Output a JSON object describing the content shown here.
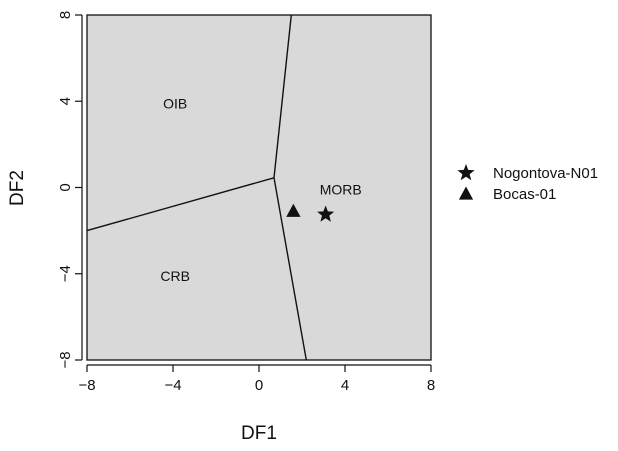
{
  "chart_data": {
    "type": "scatter",
    "title": "",
    "xlabel": "DF1",
    "ylabel": "DF2",
    "xlim": [
      -8,
      8
    ],
    "ylim": [
      -8,
      8
    ],
    "x_ticks": [
      "−8",
      "−4",
      "0",
      "4",
      "8"
    ],
    "y_ticks": [
      "−8",
      "−4",
      "0",
      "4",
      "8"
    ],
    "x_tick_values": [
      -8,
      -4,
      0,
      4,
      8
    ],
    "y_tick_values": [
      -8,
      -4,
      0,
      4,
      8
    ],
    "plot_background": "#d9d9d9",
    "grid": false,
    "boundaries": [
      {
        "points": [
          [
            -8,
            -2.0
          ],
          [
            0.7,
            0.45
          ]
        ]
      },
      {
        "points": [
          [
            1.5,
            8
          ],
          [
            0.7,
            0.45
          ]
        ]
      },
      {
        "points": [
          [
            0.7,
            0.45
          ],
          [
            2.2,
            -8
          ]
        ]
      }
    ],
    "regions": [
      {
        "label": "OIB",
        "x": -3.9,
        "y": 3.9
      },
      {
        "label": "MORB",
        "x": 3.8,
        "y": -0.1
      },
      {
        "label": "CRB",
        "x": -3.9,
        "y": -4.1
      }
    ],
    "series": [
      {
        "name": "Nogontova-N01",
        "marker": "star",
        "color": "#111111",
        "points": [
          [
            3.1,
            -1.25
          ]
        ]
      },
      {
        "name": "Bocas-01",
        "marker": "triangle",
        "color": "#111111",
        "points": [
          [
            1.6,
            -1.1
          ]
        ]
      }
    ],
    "legend_placement": "right"
  }
}
